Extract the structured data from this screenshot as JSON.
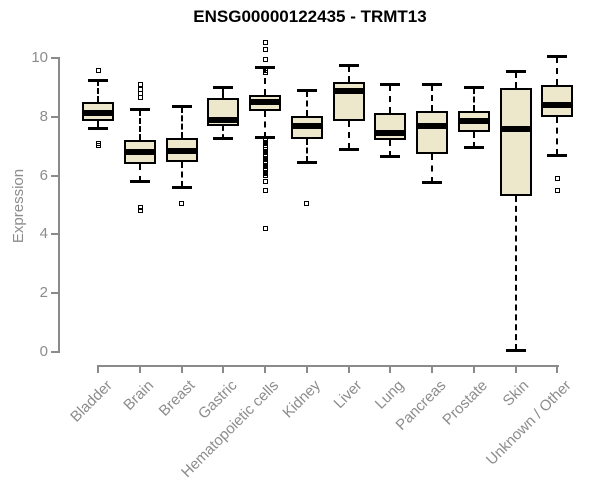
{
  "page": {
    "background": "#FFFFFF"
  },
  "chart_data": {
    "type": "box",
    "title": "ENSG00000122435 - TRMT13",
    "ylabel": "Expression",
    "xlabel": "",
    "ylim": [
      0,
      10.7
    ],
    "yticks": [
      0,
      2,
      4,
      6,
      8,
      10
    ],
    "grid": false,
    "legend_position": "none",
    "colors": {
      "box_fill": "#EDE8CB",
      "box_border": "#000000",
      "median": "#000000",
      "whisker": "#000000",
      "axis": "#8A8A8A",
      "tick_text": "#8C8C8C",
      "title_text": "#000000"
    },
    "categories": [
      "Bladder",
      "Brain",
      "Breast",
      "Gastric",
      "Hematopoietic cells",
      "Kidney",
      "Liver",
      "Lung",
      "Pancreas",
      "Prostate",
      "Skin",
      "Unknown / Other"
    ],
    "series": [
      {
        "name": "Bladder",
        "whislo": 7.6,
        "q1": 7.85,
        "med": 8.15,
        "q3": 8.5,
        "whishi": 9.25,
        "fliers": [
          9.6,
          7.1,
          7.02
        ]
      },
      {
        "name": "Brain",
        "whislo": 5.8,
        "q1": 6.4,
        "med": 6.8,
        "q3": 7.2,
        "whishi": 8.25,
        "fliers": [
          9.1,
          8.95,
          8.8,
          8.65,
          4.9,
          4.8
        ]
      },
      {
        "name": "Breast",
        "whislo": 5.6,
        "q1": 6.45,
        "med": 6.85,
        "q3": 7.3,
        "whishi": 8.35,
        "fliers": [
          5.05
        ]
      },
      {
        "name": "Gastric",
        "whislo": 7.25,
        "q1": 7.7,
        "med": 7.9,
        "q3": 8.65,
        "whishi": 9.0,
        "fliers": []
      },
      {
        "name": "Hematopoietic cells",
        "whislo": 7.3,
        "q1": 8.2,
        "med": 8.5,
        "q3": 8.75,
        "whishi": 9.7,
        "fliers": [
          10.55,
          10.3,
          9.95,
          9.6,
          9.5,
          7.2,
          7.14,
          7.08,
          7.02,
          6.96,
          6.9,
          6.84,
          6.78,
          6.72,
          6.66,
          6.6,
          6.54,
          6.48,
          6.42,
          6.36,
          6.3,
          6.24,
          6.18,
          6.12,
          6.06,
          6.0,
          5.8,
          5.5,
          4.2
        ]
      },
      {
        "name": "Kidney",
        "whislo": 6.45,
        "q1": 7.25,
        "med": 7.7,
        "q3": 8.05,
        "whishi": 8.9,
        "fliers": [
          5.05
        ]
      },
      {
        "name": "Liver",
        "whislo": 6.9,
        "q1": 7.85,
        "med": 8.9,
        "q3": 9.2,
        "whishi": 9.75,
        "fliers": []
      },
      {
        "name": "Lung",
        "whislo": 6.65,
        "q1": 7.2,
        "med": 7.45,
        "q3": 8.15,
        "whishi": 9.1,
        "fliers": []
      },
      {
        "name": "Pancreas",
        "whislo": 5.75,
        "q1": 6.75,
        "med": 7.7,
        "q3": 8.2,
        "whishi": 9.1,
        "fliers": []
      },
      {
        "name": "Prostate",
        "whislo": 6.95,
        "q1": 7.5,
        "med": 7.85,
        "q3": 8.2,
        "whishi": 9.0,
        "fliers": []
      },
      {
        "name": "Skin",
        "whislo": 0.05,
        "q1": 5.3,
        "med": 7.6,
        "q3": 9.0,
        "whishi": 9.55,
        "fliers": []
      },
      {
        "name": "Unknown / Other",
        "whislo": 6.7,
        "q1": 8.0,
        "med": 8.4,
        "q3": 9.1,
        "whishi": 10.05,
        "fliers": [
          5.9,
          5.5
        ]
      }
    ]
  }
}
